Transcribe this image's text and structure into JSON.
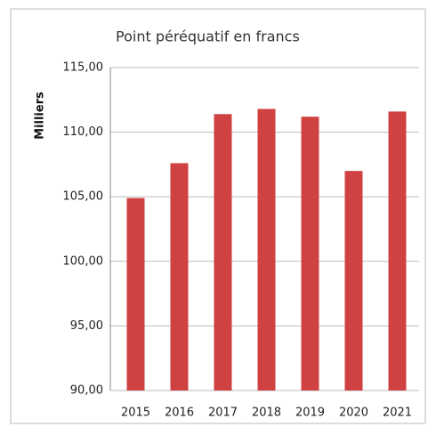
{
  "chart_data": {
    "type": "bar",
    "title": "Point péréquatif en francs",
    "y_label": "Milliers",
    "categories": [
      "2015",
      "2016",
      "2017",
      "2018",
      "2019",
      "2020",
      "2021"
    ],
    "values": [
      104.9,
      107.6,
      111.4,
      111.8,
      111.2,
      107.0,
      111.6
    ],
    "color": "#d04141",
    "ylim": [
      90,
      115
    ],
    "yticks": [
      {
        "value": 90,
        "label": "90,00"
      },
      {
        "value": 95,
        "label": "95,00"
      },
      {
        "value": 100,
        "label": "100,00"
      },
      {
        "value": 105,
        "label": "105,00"
      },
      {
        "value": 110,
        "label": "110,00"
      },
      {
        "value": 115,
        "label": "115,00"
      }
    ],
    "grid": true
  }
}
